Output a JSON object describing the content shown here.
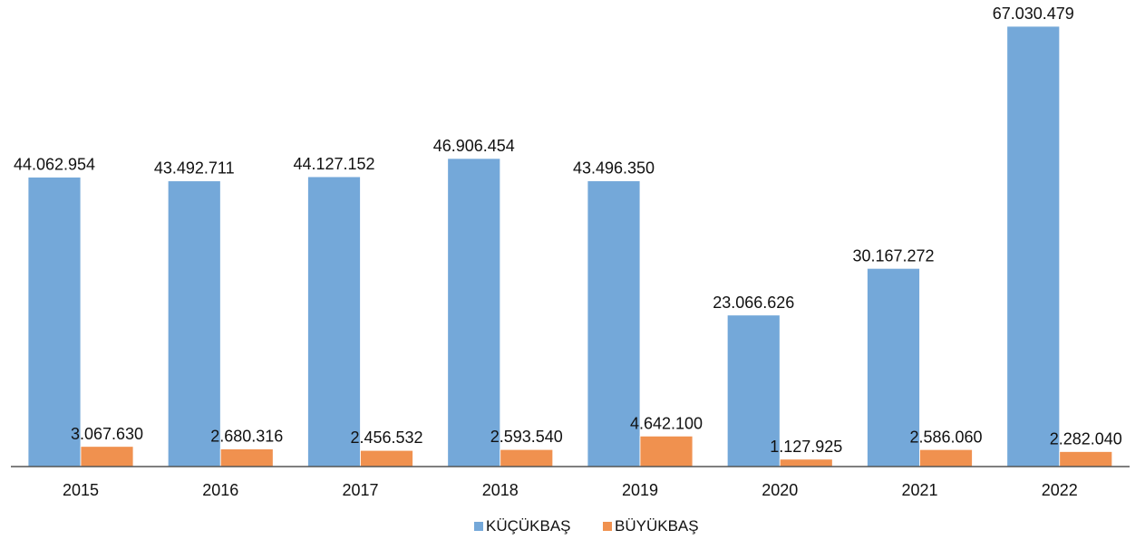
{
  "chart_data": {
    "type": "bar",
    "categories": [
      "2015",
      "2016",
      "2017",
      "2018",
      "2019",
      "2020",
      "2021",
      "2022"
    ],
    "series": [
      {
        "name": "KÜÇÜKBAŞ",
        "color": "#74A8D9",
        "values": [
          44062954,
          43492711,
          44127152,
          46906454,
          43496350,
          23066626,
          30167272,
          67030479
        ],
        "labels": [
          "44.062.954",
          "43.492.711",
          "44.127.152",
          "46.906.454",
          "43.496.350",
          "23.066.626",
          "30.167.272",
          "67.030.479"
        ]
      },
      {
        "name": "BÜYÜKBAŞ",
        "color": "#F0914F",
        "values": [
          3067630,
          2680316,
          2456532,
          2593540,
          4642100,
          1127925,
          2586060,
          2282040
        ],
        "labels": [
          "3.067.630",
          "2.680.316",
          "2.456.532",
          "2.593.540",
          "4.642.100",
          "1.127.925",
          "2.586.060",
          "2.282.040"
        ]
      }
    ],
    "ylim": [
      0,
      67030479
    ],
    "grid": false,
    "legend_position": "bottom-center",
    "data_labels": true
  }
}
